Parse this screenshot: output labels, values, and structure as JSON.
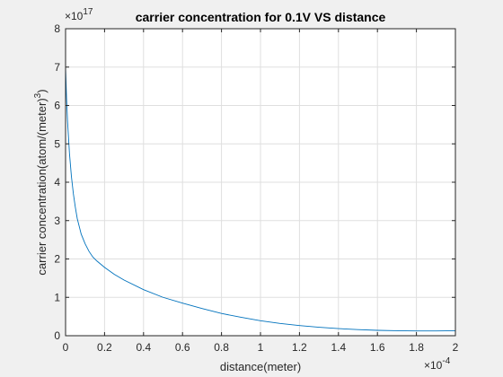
{
  "chart_data": {
    "type": "line",
    "title": "carrier concentration for 0.1V VS distance",
    "xlabel": "distance(meter)",
    "ylabel_base": "carrier concentration(atom/(meter)",
    "ylabel_sup": "3",
    "x_multiplier_base": "×10",
    "x_multiplier_exp": "-4",
    "y_multiplier_base": "×10",
    "y_multiplier_exp": "17",
    "xlim": [
      0,
      0.0002
    ],
    "ylim": [
      0,
      8e+17
    ],
    "xticks": [
      0,
      2e-05,
      4e-05,
      6e-05,
      8e-05,
      0.0001,
      0.00012,
      0.00014,
      0.00016,
      0.00018,
      0.0002
    ],
    "xtick_labels": [
      "0",
      "0.2",
      "0.4",
      "0.6",
      "0.8",
      "1",
      "1.2",
      "1.4",
      "1.6",
      "1.8",
      "2"
    ],
    "yticks": [
      0,
      1e+17,
      2e+17,
      3e+17,
      4e+17,
      5e+17,
      6e+17,
      7e+17,
      8e+17
    ],
    "ytick_labels": [
      "0",
      "1",
      "2",
      "3",
      "4",
      "5",
      "6",
      "7",
      "8"
    ],
    "grid": true,
    "series": [
      {
        "color": "#0072bd",
        "x": [
          0,
          5e-07,
          1e-06,
          2e-06,
          3e-06,
          4e-06,
          5e-06,
          6e-06,
          8e-06,
          1e-05,
          1.2e-05,
          1.4e-05,
          1.6e-05,
          2e-05,
          2.5e-05,
          3e-05,
          4e-05,
          5e-05,
          6e-05,
          7e-05,
          8e-05,
          9e-05,
          0.0001,
          0.00011,
          0.00012,
          0.00013,
          0.00014,
          0.00015,
          0.00016,
          0.00017,
          0.00018,
          0.00019,
          0.0002
        ],
        "y": [
          7e+17,
          6.2e+17,
          5.6e+17,
          4.75e+17,
          4.15e+17,
          3.7e+17,
          3.35e+17,
          3.05e+17,
          2.65e+17,
          2.4e+17,
          2.2e+17,
          2.05e+17,
          1.95e+17,
          1.78e+17,
          1.6e+17,
          1.45e+17,
          1.2e+17,
          1e+17,
          8.5e+16,
          7.1e+16,
          5.8e+16,
          4.8e+16,
          3.9e+16,
          3.2e+16,
          2.65e+16,
          2.2e+16,
          1.85e+16,
          1.6e+16,
          1.4e+16,
          1.3e+16,
          1.25e+16,
          1.25e+16,
          1.3e+16
        ]
      }
    ]
  }
}
